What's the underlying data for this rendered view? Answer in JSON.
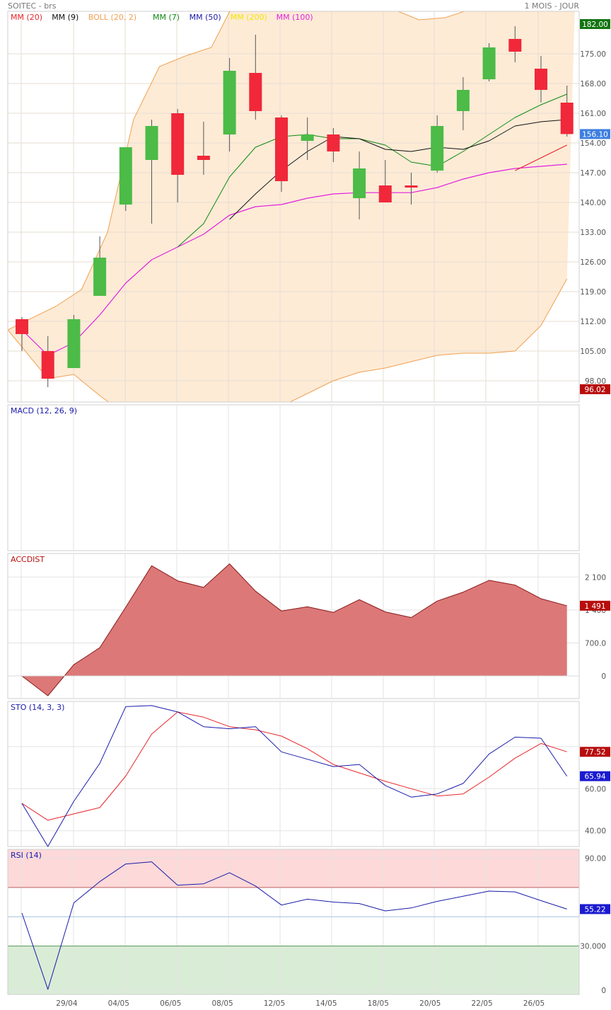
{
  "header": {
    "symbol": "SOITEC - brs",
    "period": "1 MOIS - JOUR"
  },
  "chart_data": [
    {
      "name": "price",
      "type": "candlestick",
      "legend": [
        {
          "label": "MM (20)",
          "color": "#e8262b"
        },
        {
          "label": "MM (9)",
          "color": "#111111"
        },
        {
          "label": "BOLL (20, 2)",
          "color": "#f0a050"
        },
        {
          "label": "MM (7)",
          "color": "#118811"
        },
        {
          "label": "MM (50)",
          "color": "#1a1aaa"
        },
        {
          "label": "MM (200)",
          "color": "#f2e600"
        },
        {
          "label": "MM (100)",
          "color": "#e020e0"
        }
      ],
      "y_ticks": [
        98.0,
        105.0,
        112.0,
        119.0,
        126.0,
        133.0,
        140.0,
        147.0,
        154.0,
        161.0,
        168.0,
        175.0
      ],
      "y_range": [
        93,
        185
      ],
      "candles": [
        {
          "o": 112.5,
          "h": 113.0,
          "l": 105.0,
          "c": 109.0
        },
        {
          "o": 105.0,
          "h": 108.5,
          "l": 96.5,
          "c": 98.5
        },
        {
          "o": 101.0,
          "h": 113.5,
          "l": 101.0,
          "c": 112.5
        },
        {
          "o": 118.0,
          "h": 132.0,
          "l": 118.0,
          "c": 127.0
        },
        {
          "o": 139.5,
          "h": 153.0,
          "l": 138.0,
          "c": 153.0
        },
        {
          "o": 150.0,
          "h": 159.5,
          "l": 135.0,
          "c": 158.0
        },
        {
          "o": 161.0,
          "h": 162.0,
          "l": 140.0,
          "c": 146.5
        },
        {
          "o": 151.0,
          "h": 159.0,
          "l": 146.5,
          "c": 150.0
        },
        {
          "o": 156.0,
          "h": 174.0,
          "l": 152.0,
          "c": 171.0
        },
        {
          "o": 170.5,
          "h": 179.5,
          "l": 159.5,
          "c": 161.5
        },
        {
          "o": 160.0,
          "h": 160.5,
          "l": 142.5,
          "c": 145.0
        },
        {
          "o": 154.5,
          "h": 160.0,
          "l": 150.0,
          "c": 156.0
        },
        {
          "o": 156.0,
          "h": 157.5,
          "l": 149.5,
          "c": 152.0
        },
        {
          "o": 141.0,
          "h": 152.0,
          "l": 136.0,
          "c": 148.0
        },
        {
          "o": 144.0,
          "h": 150.0,
          "l": 140.0,
          "c": 140.0
        },
        {
          "o": 144.0,
          "h": 147.0,
          "l": 139.5,
          "c": 143.5
        },
        {
          "o": 147.5,
          "h": 160.5,
          "l": 147.0,
          "c": 158.0
        },
        {
          "o": 161.5,
          "h": 169.5,
          "l": 157.0,
          "c": 166.5
        },
        {
          "o": 169.0,
          "h": 177.5,
          "l": 168.5,
          "c": 176.5
        },
        {
          "o": 178.5,
          "h": 181.5,
          "l": 173.0,
          "c": 175.5
        },
        {
          "o": 171.5,
          "h": 174.5,
          "l": 163.5,
          "c": 166.5
        },
        {
          "o": 163.5,
          "h": 167.5,
          "l": 155.5,
          "c": 156.1
        }
      ],
      "mm20": {
        "color": "#e8262b",
        "values": [
          null,
          null,
          null,
          null,
          null,
          null,
          null,
          null,
          null,
          null,
          null,
          null,
          null,
          null,
          null,
          null,
          null,
          null,
          null,
          147.5,
          150.5,
          153.5
        ]
      },
      "mm9": {
        "color": "#111111",
        "values": [
          null,
          null,
          null,
          null,
          null,
          null,
          null,
          null,
          136.0,
          142.0,
          147.5,
          152.0,
          155.5,
          155.0,
          152.5,
          152.0,
          153.0,
          152.5,
          154.5,
          158.0,
          159.0,
          159.5
        ]
      },
      "mm7": {
        "color": "#118811",
        "values": [
          null,
          null,
          null,
          null,
          null,
          null,
          129.5,
          135.0,
          146.0,
          153.0,
          155.5,
          156.0,
          155.0,
          155.0,
          153.5,
          149.5,
          148.5,
          152.0,
          156.0,
          160.0,
          163.0,
          165.5
        ]
      },
      "mm100": {
        "color": "#e020e0",
        "values": [
          110.0,
          104.0,
          107.0,
          113.5,
          121.0,
          126.5,
          129.5,
          132.5,
          137.0,
          139.0,
          139.5,
          141.0,
          142.0,
          142.3,
          142.3,
          142.3,
          143.5,
          145.5,
          147.0,
          148.0,
          148.5,
          149.0
        ]
      },
      "boll_upper": [
        110.0,
        115.5,
        119.5,
        133.0,
        159.5,
        172.0,
        174.5,
        176.5,
        188.5,
        191.0,
        190.5,
        190.0,
        189.0,
        187.5,
        185.5,
        183.0,
        183.5,
        185.5,
        190.0,
        192.0,
        192.5,
        185.0
      ],
      "boll_lower": [
        110.0,
        98.5,
        99.5,
        94.5,
        90.0,
        89.0,
        88.5,
        88.0,
        88.5,
        89.0,
        92.0,
        95.0,
        98.0,
        100.0,
        101.0,
        102.5,
        104.0,
        104.5,
        104.5,
        105.0,
        111.0,
        122.0
      ],
      "last_tags": [
        {
          "text": "182.00",
          "value": 182.0,
          "color": "#127512"
        },
        {
          "text": "156.10",
          "value": 156.1,
          "color": "#3d7fe0"
        },
        {
          "text": "96.02",
          "value": 96.02,
          "color": "#b80d0d"
        }
      ]
    },
    {
      "name": "macd",
      "type": "line",
      "legend": [
        {
          "label": "MACD (12, 26, 9)",
          "color": "#1a1aaa"
        }
      ],
      "y_ticks": [],
      "series": []
    },
    {
      "name": "accdist",
      "type": "area",
      "legend": [
        {
          "label": "ACCDIST",
          "color": "#b81010"
        }
      ],
      "y_ticks": [
        0,
        700,
        1400,
        2100
      ],
      "y_tick_labels": [
        "0",
        "700.0",
        "1 400",
        "2 100"
      ],
      "y_range": [
        -480,
        2600
      ],
      "values": [
        0,
        -420,
        240,
        600,
        1460,
        2340,
        2020,
        1880,
        2380,
        1800,
        1380,
        1470,
        1350,
        1620,
        1360,
        1240,
        1590,
        1780,
        2030,
        1930,
        1640,
        1491
      ],
      "last_tag": {
        "text": "1 491",
        "value": 1491,
        "color": "#b80d0d"
      }
    },
    {
      "name": "sto",
      "type": "line",
      "legend": [
        {
          "label": "STO (14, 3, 3)",
          "color": "#1a1aaa"
        }
      ],
      "y_ticks": [
        40,
        60,
        80
      ],
      "y_tick_labels": [
        "40.00",
        "60.00",
        ""
      ],
      "y_range": [
        32.5,
        101.5
      ],
      "series": [
        {
          "color": "#1a1aaa",
          "values": [
            53.0,
            32.5,
            54.0,
            72.0,
            99.0,
            99.5,
            96.5,
            89.5,
            88.5,
            89.5,
            77.5,
            74.0,
            70.5,
            71.5,
            61.5,
            56.0,
            57.5,
            62.5,
            76.5,
            84.5,
            84.0,
            65.94
          ]
        },
        {
          "color": "#e8262b",
          "values": [
            53.0,
            45.0,
            48.0,
            51.0,
            66.0,
            86.0,
            96.5,
            94.0,
            89.5,
            88.0,
            85.0,
            79.0,
            71.5,
            67.5,
            63.5,
            60.0,
            56.5,
            57.5,
            65.5,
            74.5,
            81.5,
            77.52
          ]
        }
      ],
      "last_tags": [
        {
          "text": "77.52",
          "value": 77.52,
          "color": "#b80d0d"
        },
        {
          "text": "65.94",
          "value": 65.94,
          "color": "#1a1ad0"
        }
      ]
    },
    {
      "name": "rsi",
      "type": "line",
      "legend": [
        {
          "label": "RSI (14)",
          "color": "#1a1aaa"
        }
      ],
      "y_ticks": [
        0,
        30,
        50,
        70,
        90
      ],
      "y_tick_labels": [
        "0",
        "30.000",
        "",
        "",
        "90.00"
      ],
      "y_range": [
        -3,
        96
      ],
      "zones": {
        "overbought": 70,
        "oversold": 30,
        "mid": 50
      },
      "series": [
        {
          "color": "#1a1aaa",
          "values": [
            52.5,
            0.5,
            59.5,
            74.0,
            86.0,
            87.5,
            71.5,
            72.5,
            80.0,
            71.0,
            58.0,
            62.0,
            60.0,
            59.0,
            54.0,
            56.0,
            60.5,
            64.0,
            67.5,
            67.0,
            61.0,
            55.22
          ]
        }
      ],
      "last_tags": [
        {
          "text": "55.22",
          "value": 55.22,
          "color": "#1a1ad0"
        }
      ]
    }
  ],
  "x_labels": [
    "29/04",
    "04/05",
    "06/05",
    "08/05",
    "12/05",
    "14/05",
    "18/05",
    "20/05",
    "22/05",
    "26/05"
  ],
  "x_label_index": [
    2,
    4,
    6,
    8,
    10,
    12,
    14,
    16,
    18,
    20
  ]
}
